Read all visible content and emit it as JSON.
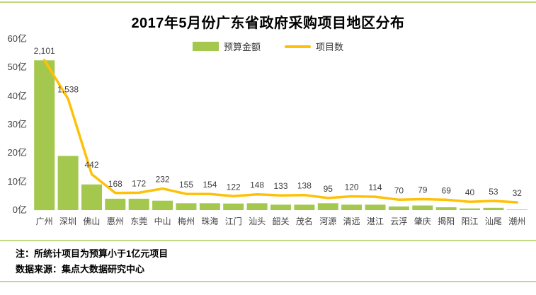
{
  "page": {
    "note1": "注：所统计项目为预算小于1亿元项目",
    "note2": "数据来源：集点大数据研究中心"
  },
  "colors": {
    "bar": "#A4C84D",
    "line": "#FFC107",
    "divider": "#C2D87E",
    "label_text": "#404040"
  },
  "chart_data": {
    "type": "bar",
    "subtype": "bar+line combo",
    "title": "2017年5月份广东省政府采购项目地区分布",
    "categories": [
      "广州",
      "深圳",
      "佛山",
      "惠州",
      "东莞",
      "中山",
      "梅州",
      "珠海",
      "江门",
      "汕头",
      "韶关",
      "茂名",
      "河源",
      "清远",
      "湛江",
      "云浮",
      "肇庆",
      "揭阳",
      "阳江",
      "汕尾",
      "潮州"
    ],
    "series": [
      {
        "name": "预算金额",
        "type": "bar",
        "unit": "亿元",
        "values": [
          52.5,
          19,
          9,
          4,
          4,
          3.3,
          2.4,
          2.4,
          2.3,
          2.4,
          1.9,
          1.9,
          2.4,
          1.9,
          1.9,
          1.3,
          1.6,
          1.0,
          0.6,
          0.8,
          0.2
        ]
      },
      {
        "name": "项目数",
        "type": "line",
        "values": [
          2101,
          1538,
          442,
          168,
          172,
          232,
          155,
          154,
          122,
          148,
          133,
          138,
          95,
          120,
          114,
          70,
          79,
          69,
          40,
          53,
          32
        ],
        "labels": [
          "2,101",
          "1,538",
          "442",
          "168",
          "172",
          "232",
          "155",
          "154",
          "122",
          "148",
          "133",
          "138",
          "95",
          "120",
          "114",
          "70",
          "79",
          "69",
          "40",
          "53",
          "32"
        ]
      }
    ],
    "y_axis": {
      "ticks": [
        "0亿",
        "10亿",
        "20亿",
        "30亿",
        "40亿",
        "50亿",
        "60亿"
      ],
      "min": 0,
      "max": 60
    },
    "legend_position": "top-center",
    "grid": false
  }
}
